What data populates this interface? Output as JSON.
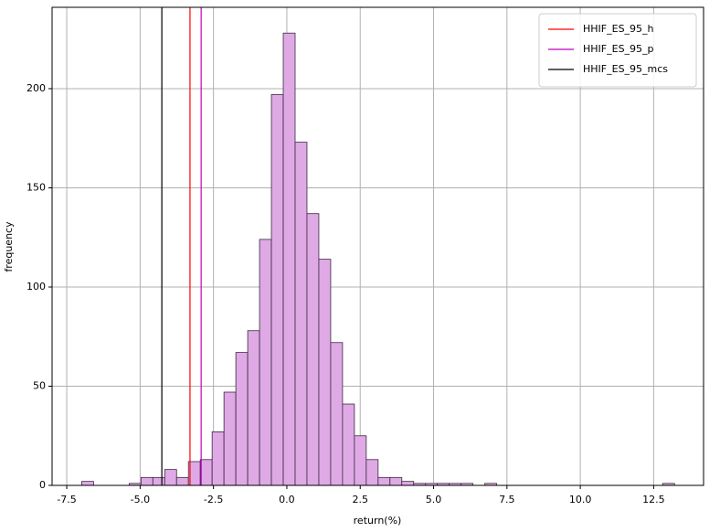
{
  "chart_data": {
    "type": "histogram",
    "xlabel": "return(%)",
    "ylabel": "frequency",
    "bins": [
      -6.99,
      -6.586,
      -6.182,
      -5.778,
      -5.374,
      -4.97,
      -4.566,
      -4.162,
      -3.758,
      -3.354,
      -2.95,
      -2.546,
      -2.142,
      -1.738,
      -1.334,
      -0.93,
      -0.526,
      -0.122,
      0.282,
      0.686,
      1.09,
      1.494,
      1.898,
      2.302,
      2.706,
      3.11,
      3.514,
      3.918,
      4.322,
      4.726,
      5.13,
      5.534,
      5.938,
      6.342,
      6.746,
      7.15,
      7.554,
      7.958,
      8.362,
      8.766,
      9.17,
      9.574,
      9.978,
      10.382,
      10.786,
      11.19,
      11.594,
      11.998,
      12.402,
      12.806,
      13.21
    ],
    "values": [
      2,
      0,
      0,
      0,
      1,
      4,
      4,
      8,
      4,
      12,
      13,
      27,
      47,
      67,
      78,
      124,
      197,
      228,
      173,
      137,
      114,
      72,
      41,
      25,
      13,
      4,
      4,
      2,
      1,
      1,
      1,
      1,
      1,
      0,
      1,
      0,
      0,
      0,
      0,
      0,
      0,
      0,
      0,
      0,
      0,
      0,
      0,
      0,
      0,
      1
    ],
    "color": "#dfa9e6",
    "edgecolor": "#3a2a3c",
    "vlines": [
      {
        "name": "HHIF_ES_95_h",
        "color": "#ff0000",
        "x": -3.3
      },
      {
        "name": "HHIF_ES_95_p",
        "color": "#bf00bf",
        "x": -2.92
      },
      {
        "name": "HHIF_ES_95_mcs",
        "color": "#000000",
        "x": -4.26
      }
    ],
    "xlim": [
      -8.0,
      14.2
    ],
    "ylim": [
      0,
      241
    ],
    "xticks": [
      {
        "value": -7.5,
        "label": "-7.5"
      },
      {
        "value": -5,
        "label": "-5.0"
      },
      {
        "value": -2.5,
        "label": "-2.5"
      },
      {
        "value": 0,
        "label": "0.0"
      },
      {
        "value": 2.5,
        "label": "2.5"
      },
      {
        "value": 5,
        "label": "5.0"
      },
      {
        "value": 7.5,
        "label": "7.5"
      },
      {
        "value": 10,
        "label": "10.0"
      },
      {
        "value": 12.5,
        "label": "12.5"
      }
    ],
    "yticks": [
      0,
      50,
      100,
      150,
      200
    ],
    "grid": true,
    "legend": "upper right"
  }
}
